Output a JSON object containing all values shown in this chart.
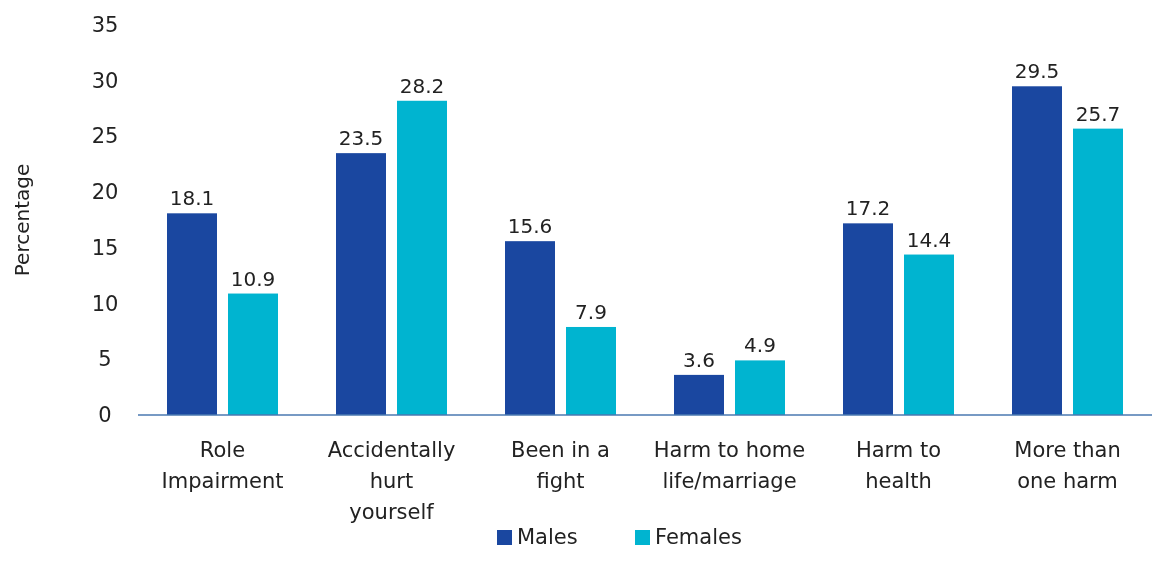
{
  "chart_data": {
    "type": "bar",
    "ylabel": "Percentage",
    "categories": [
      "Role Impairment",
      "Accidentally hurt yourself",
      "Been in a fight",
      "Harm to home life/marriage",
      "Harm to health",
      "More than one harm"
    ],
    "series": [
      {
        "name": "Males",
        "color": "#1a47a0",
        "values": [
          18.1,
          23.5,
          15.6,
          3.6,
          17.2,
          29.5
        ]
      },
      {
        "name": "Females",
        "color": "#00b4d0",
        "values": [
          10.9,
          28.2,
          7.9,
          4.9,
          14.4,
          25.7
        ]
      }
    ],
    "ylim": [
      0,
      35
    ],
    "yticks": [
      0,
      5,
      10,
      15,
      20,
      25,
      30,
      35
    ],
    "grid": false,
    "legend": "bottom",
    "data_labels": true
  }
}
